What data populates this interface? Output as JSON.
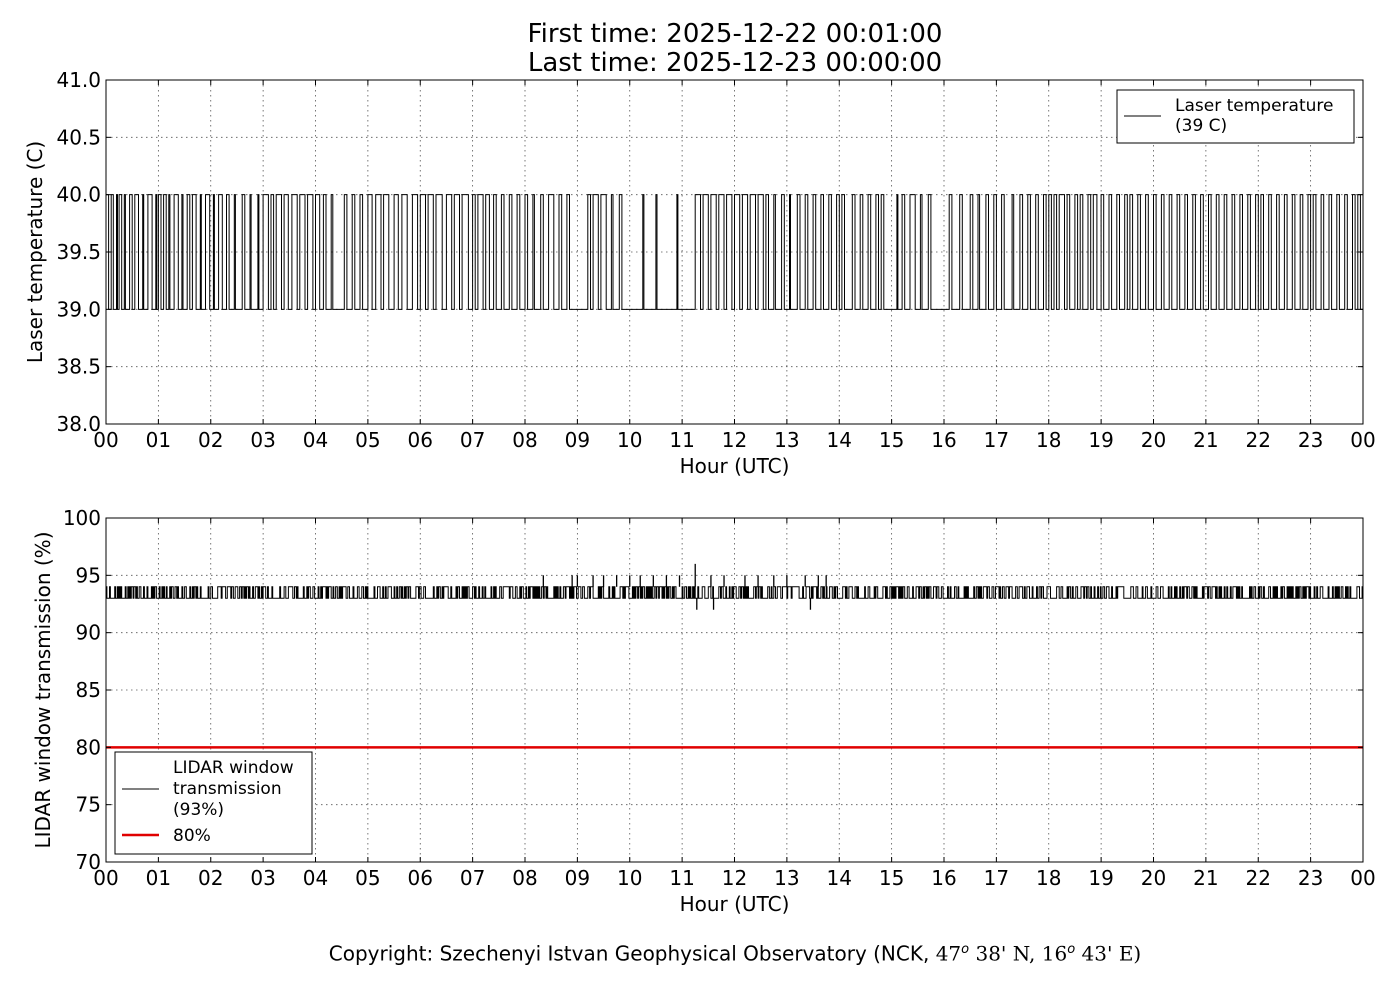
{
  "header": {
    "first_time": "First time: 2025-12-22 00:01:00",
    "last_time": "Last time: 2025-12-23 00:00:00"
  },
  "footer": {
    "prefix": "Copyright: Szechenyi Istvan Geophysical Observatory (NCK, ",
    "lat_deg": "47",
    "lat_min": " 38' N, ",
    "lon_deg": "16",
    "lon_min": " 43' E)",
    "degree_mark": "o"
  },
  "chart_data": [
    {
      "type": "line",
      "ylabel": "Laser temperature (C)",
      "xlabel": "Hour (UTC)",
      "xlim": [
        0,
        24
      ],
      "ylim": [
        38.0,
        41.0
      ],
      "x_ticks": [
        "00",
        "01",
        "02",
        "03",
        "04",
        "05",
        "06",
        "07",
        "08",
        "09",
        "10",
        "11",
        "12",
        "13",
        "14",
        "15",
        "16",
        "17",
        "18",
        "19",
        "20",
        "21",
        "22",
        "23",
        "00"
      ],
      "y_ticks": [
        "38.0",
        "38.5",
        "39.0",
        "39.5",
        "40.0",
        "40.5",
        "41.0"
      ],
      "y_tick_values": [
        38.0,
        38.5,
        39.0,
        39.5,
        40.0,
        40.5,
        41.0
      ],
      "grid": true,
      "legend_position": "top-right",
      "series": [
        {
          "name": "Laser temperature\n(39 C)",
          "color": "#000000",
          "sampling_minutes": 1,
          "values_description": "Stepped signal toggling between two levels",
          "levels": [
            39.0,
            40.0
          ],
          "intervals_at_40": [
            [
              0.0,
              0.05
            ],
            [
              0.1,
              0.14
            ],
            [
              0.2,
              0.22
            ],
            [
              0.25,
              0.3
            ],
            [
              0.35,
              0.37
            ],
            [
              0.45,
              0.5
            ],
            [
              0.55,
              0.62
            ],
            [
              0.7,
              0.72
            ],
            [
              0.8,
              0.88
            ],
            [
              0.95,
              0.97
            ],
            [
              1.0,
              1.05
            ],
            [
              1.1,
              1.15
            ],
            [
              1.2,
              1.22
            ],
            [
              1.3,
              1.38
            ],
            [
              1.45,
              1.47
            ],
            [
              1.55,
              1.6
            ],
            [
              1.65,
              1.72
            ],
            [
              1.8,
              1.82
            ],
            [
              1.9,
              1.98
            ],
            [
              2.05,
              2.07
            ],
            [
              2.15,
              2.22
            ],
            [
              2.3,
              2.35
            ],
            [
              2.45,
              2.47
            ],
            [
              2.6,
              2.65
            ],
            [
              2.75,
              2.77
            ],
            [
              2.9,
              2.92
            ],
            [
              3.0,
              3.1
            ],
            [
              3.15,
              3.2
            ],
            [
              3.25,
              3.35
            ],
            [
              3.4,
              3.48
            ],
            [
              3.55,
              3.65
            ],
            [
              3.7,
              3.8
            ],
            [
              3.85,
              3.95
            ],
            [
              4.0,
              4.08
            ],
            [
              4.15,
              4.2
            ],
            [
              4.3,
              4.33
            ],
            [
              4.55,
              4.6
            ],
            [
              4.7,
              4.75
            ],
            [
              4.85,
              4.9
            ],
            [
              5.0,
              5.08
            ],
            [
              5.15,
              5.25
            ],
            [
              5.3,
              5.4
            ],
            [
              5.5,
              5.58
            ],
            [
              5.65,
              5.75
            ],
            [
              5.85,
              5.95
            ],
            [
              6.0,
              6.1
            ],
            [
              6.15,
              6.25
            ],
            [
              6.3,
              6.42
            ],
            [
              6.5,
              6.6
            ],
            [
              6.65,
              6.75
            ],
            [
              6.8,
              6.92
            ],
            [
              7.0,
              7.05
            ],
            [
              7.1,
              7.2
            ],
            [
              7.25,
              7.32
            ],
            [
              7.4,
              7.45
            ],
            [
              7.55,
              7.6
            ],
            [
              7.7,
              7.75
            ],
            [
              7.85,
              7.9
            ],
            [
              8.0,
              8.05
            ],
            [
              8.15,
              8.18
            ],
            [
              8.3,
              8.35
            ],
            [
              8.45,
              8.55
            ],
            [
              8.65,
              8.7
            ],
            [
              8.8,
              8.85
            ],
            [
              9.2,
              9.25
            ],
            [
              9.3,
              9.4
            ],
            [
              9.45,
              9.55
            ],
            [
              9.65,
              9.68
            ],
            [
              9.8,
              9.85
            ],
            [
              10.25,
              10.27
            ],
            [
              10.5,
              10.52
            ],
            [
              10.9,
              10.92
            ],
            [
              11.25,
              11.35
            ],
            [
              11.4,
              11.5
            ],
            [
              11.55,
              11.65
            ],
            [
              11.7,
              11.8
            ],
            [
              11.85,
              11.95
            ],
            [
              12.0,
              12.1
            ],
            [
              12.15,
              12.25
            ],
            [
              12.3,
              12.4
            ],
            [
              12.45,
              12.55
            ],
            [
              12.6,
              12.65
            ],
            [
              12.75,
              12.78
            ],
            [
              12.9,
              12.95
            ],
            [
              13.05,
              13.07
            ],
            [
              13.2,
              13.25
            ],
            [
              13.35,
              13.4
            ],
            [
              13.5,
              13.55
            ],
            [
              13.65,
              13.7
            ],
            [
              13.8,
              13.85
            ],
            [
              13.95,
              14.0
            ],
            [
              14.05,
              14.1
            ],
            [
              14.25,
              14.3
            ],
            [
              14.4,
              14.45
            ],
            [
              14.55,
              14.6
            ],
            [
              14.7,
              14.75
            ],
            [
              14.8,
              14.85
            ],
            [
              15.1,
              15.12
            ],
            [
              15.2,
              15.25
            ],
            [
              15.35,
              15.45
            ],
            [
              15.55,
              15.58
            ],
            [
              15.7,
              15.75
            ],
            [
              16.1,
              16.15
            ],
            [
              16.3,
              16.35
            ],
            [
              16.5,
              16.55
            ],
            [
              16.65,
              16.68
            ],
            [
              16.8,
              16.85
            ],
            [
              16.95,
              17.0
            ],
            [
              17.1,
              17.15
            ],
            [
              17.3,
              17.33
            ],
            [
              17.45,
              17.5
            ],
            [
              17.6,
              17.65
            ],
            [
              17.75,
              17.8
            ],
            [
              17.9,
              17.95
            ],
            [
              18.0,
              18.05
            ],
            [
              18.1,
              18.15
            ],
            [
              18.2,
              18.3
            ],
            [
              18.35,
              18.4
            ],
            [
              18.5,
              18.55
            ],
            [
              18.6,
              18.65
            ],
            [
              18.75,
              18.8
            ],
            [
              18.85,
              18.92
            ],
            [
              19.0,
              19.05
            ],
            [
              19.15,
              19.2
            ],
            [
              19.3,
              19.35
            ],
            [
              19.45,
              19.5
            ],
            [
              19.55,
              19.6
            ],
            [
              19.7,
              19.75
            ],
            [
              19.85,
              19.9
            ],
            [
              20.0,
              20.05
            ],
            [
              20.15,
              20.2
            ],
            [
              20.3,
              20.35
            ],
            [
              20.45,
              20.5
            ],
            [
              20.6,
              20.65
            ],
            [
              20.75,
              20.8
            ],
            [
              20.9,
              20.95
            ],
            [
              21.05,
              21.1
            ],
            [
              21.2,
              21.25
            ],
            [
              21.35,
              21.4
            ],
            [
              21.5,
              21.55
            ],
            [
              21.65,
              21.7
            ],
            [
              21.8,
              21.85
            ],
            [
              21.95,
              22.0
            ],
            [
              22.05,
              22.1
            ],
            [
              22.2,
              22.25
            ],
            [
              22.35,
              22.4
            ],
            [
              22.5,
              22.55
            ],
            [
              22.65,
              22.7
            ],
            [
              22.8,
              22.85
            ],
            [
              22.95,
              23.0
            ],
            [
              23.05,
              23.1
            ],
            [
              23.2,
              23.25
            ],
            [
              23.35,
              23.4
            ],
            [
              23.5,
              23.55
            ],
            [
              23.65,
              23.7
            ],
            [
              23.8,
              23.85
            ],
            [
              23.9,
              23.95
            ]
          ]
        }
      ]
    },
    {
      "type": "line",
      "ylabel": "LIDAR window transmission (%)",
      "xlabel": "Hour (UTC)",
      "xlim": [
        0,
        24
      ],
      "ylim": [
        70,
        100
      ],
      "x_ticks": [
        "00",
        "01",
        "02",
        "03",
        "04",
        "05",
        "06",
        "07",
        "08",
        "09",
        "10",
        "11",
        "12",
        "13",
        "14",
        "15",
        "16",
        "17",
        "18",
        "19",
        "20",
        "21",
        "22",
        "23",
        "00"
      ],
      "y_ticks": [
        "70",
        "75",
        "80",
        "85",
        "90",
        "95",
        "100"
      ],
      "y_tick_values": [
        70,
        75,
        80,
        85,
        90,
        95,
        100
      ],
      "grid": true,
      "legend_position": "bottom-left",
      "series": [
        {
          "name": "LIDAR window\ntransmission\n(93%)",
          "color": "#000000",
          "baseline": 93,
          "upper_level": 94,
          "spikes": [
            {
              "x": 8.35,
              "y": 95
            },
            {
              "x": 8.9,
              "y": 95
            },
            {
              "x": 9.0,
              "y": 95
            },
            {
              "x": 9.3,
              "y": 95
            },
            {
              "x": 9.5,
              "y": 95
            },
            {
              "x": 9.75,
              "y": 95
            },
            {
              "x": 10.0,
              "y": 95
            },
            {
              "x": 10.2,
              "y": 95
            },
            {
              "x": 10.45,
              "y": 95
            },
            {
              "x": 10.7,
              "y": 95
            },
            {
              "x": 10.95,
              "y": 95
            },
            {
              "x": 11.25,
              "y": 96
            },
            {
              "x": 11.28,
              "y": 92
            },
            {
              "x": 11.55,
              "y": 95
            },
            {
              "x": 11.6,
              "y": 92
            },
            {
              "x": 11.8,
              "y": 95
            },
            {
              "x": 12.2,
              "y": 95
            },
            {
              "x": 12.45,
              "y": 95
            },
            {
              "x": 12.75,
              "y": 95
            },
            {
              "x": 13.0,
              "y": 95
            },
            {
              "x": 13.35,
              "y": 95
            },
            {
              "x": 13.45,
              "y": 92
            },
            {
              "x": 13.6,
              "y": 95
            },
            {
              "x": 13.75,
              "y": 95
            }
          ]
        },
        {
          "name": "80%",
          "color": "#e00000",
          "values": [
            80,
            80
          ],
          "x": [
            0,
            24
          ]
        }
      ]
    }
  ]
}
